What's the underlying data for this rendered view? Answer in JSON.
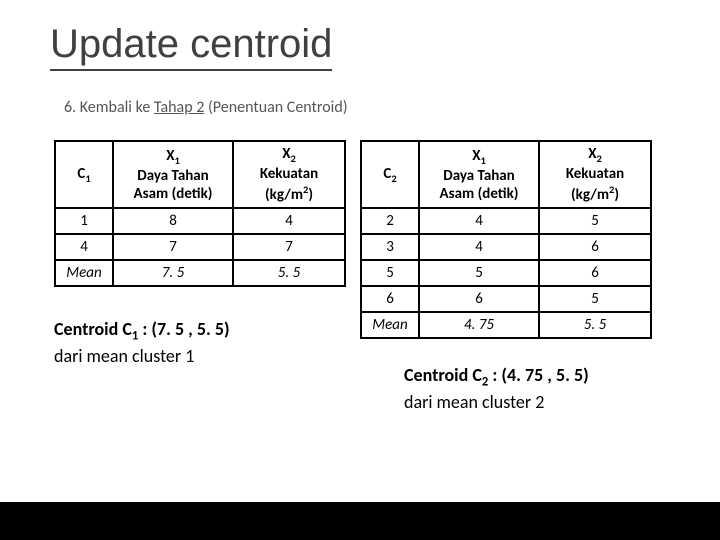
{
  "title": "Update centroid",
  "subtitle_prefix": "6. Kembali ke ",
  "subtitle_ul": "Tahap 2",
  "subtitle_suffix": " (Penentuan Centroid)",
  "table1": {
    "head_c": "C",
    "head_c_sub": "1",
    "head_x1_line1": "X",
    "head_x1_sub": "1",
    "head_x1_line2": "Daya Tahan",
    "head_x1_line3": "Asam (detik)",
    "head_x2_line1": "X",
    "head_x2_sub": "2",
    "head_x2_line2": "Kekuatan",
    "head_x2_line3": "(kg/m",
    "head_x2_sup": "2",
    "head_x2_close": ")",
    "rows": [
      {
        "c": "1",
        "x1": "8",
        "x2": "4"
      },
      {
        "c": "4",
        "x1": "7",
        "x2": "7"
      }
    ],
    "mean_label": "Mean",
    "mean_x1": "7. 5",
    "mean_x2": "5. 5"
  },
  "table2": {
    "head_c": "C",
    "head_c_sub": "2",
    "rows": [
      {
        "c": "2",
        "x1": "4",
        "x2": "5"
      },
      {
        "c": "3",
        "x1": "4",
        "x2": "6"
      },
      {
        "c": "5",
        "x1": "5",
        "x2": "6"
      },
      {
        "c": "6",
        "x1": "6",
        "x2": "5"
      }
    ],
    "mean_label": "Mean",
    "mean_x1": "4. 75",
    "mean_x2": "5. 5"
  },
  "caption1_bold": "Centroid C",
  "caption1_sub": "1",
  "caption1_bold2": " : (7. 5 , 5. 5)",
  "caption1_line2": "dari mean cluster 1",
  "caption2_bold": "Centroid C",
  "caption2_sub": "2",
  "caption2_bold2": " : (4. 75 , 5. 5)",
  "caption2_line2": "dari mean cluster 2",
  "colors": {
    "title_border": "#404040",
    "footer_bg": "#000000",
    "footer_accent": "#4e6b26",
    "border": "#000000",
    "text": "#000000",
    "subtitle_text": "#555555"
  }
}
